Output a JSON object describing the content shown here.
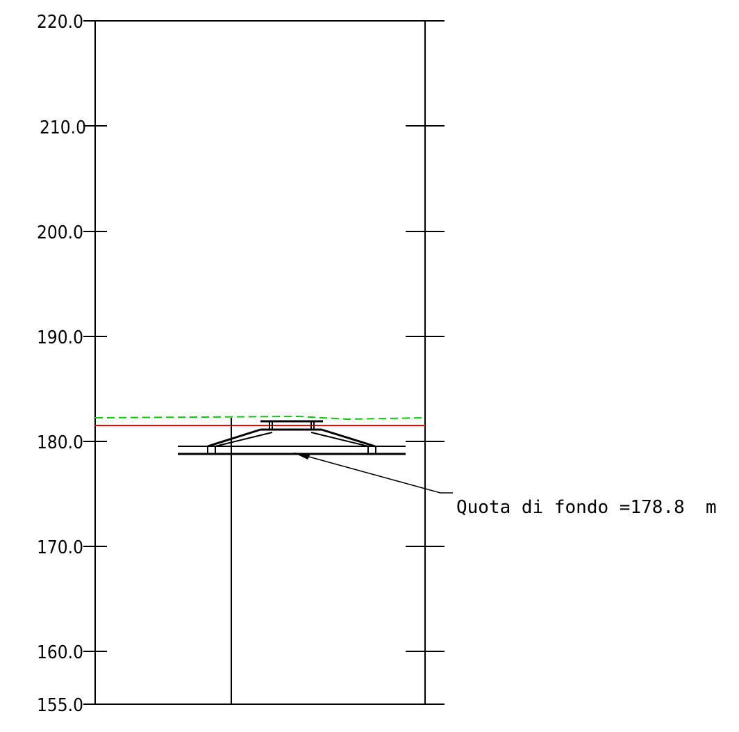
{
  "elevation_axis": {
    "ticks": [
      "220.0",
      "210.0",
      "200.0",
      "190.0",
      "180.0",
      "170.0",
      "160.0",
      "155.0"
    ],
    "tick_values": [
      220,
      210,
      200,
      190,
      180,
      170,
      160,
      155
    ],
    "range": [
      155,
      220
    ]
  },
  "levels": {
    "ground_dashed": 182.2,
    "red_reference": 181.5
  },
  "annotation": {
    "label": "Quota di fondo =178.8",
    "unit": "m",
    "bottom_elevation": 178.8
  },
  "colors": {
    "line": "#000000",
    "red_line": "#ff0000",
    "green_dashed": "#00cc00",
    "background": "#ffffff"
  }
}
